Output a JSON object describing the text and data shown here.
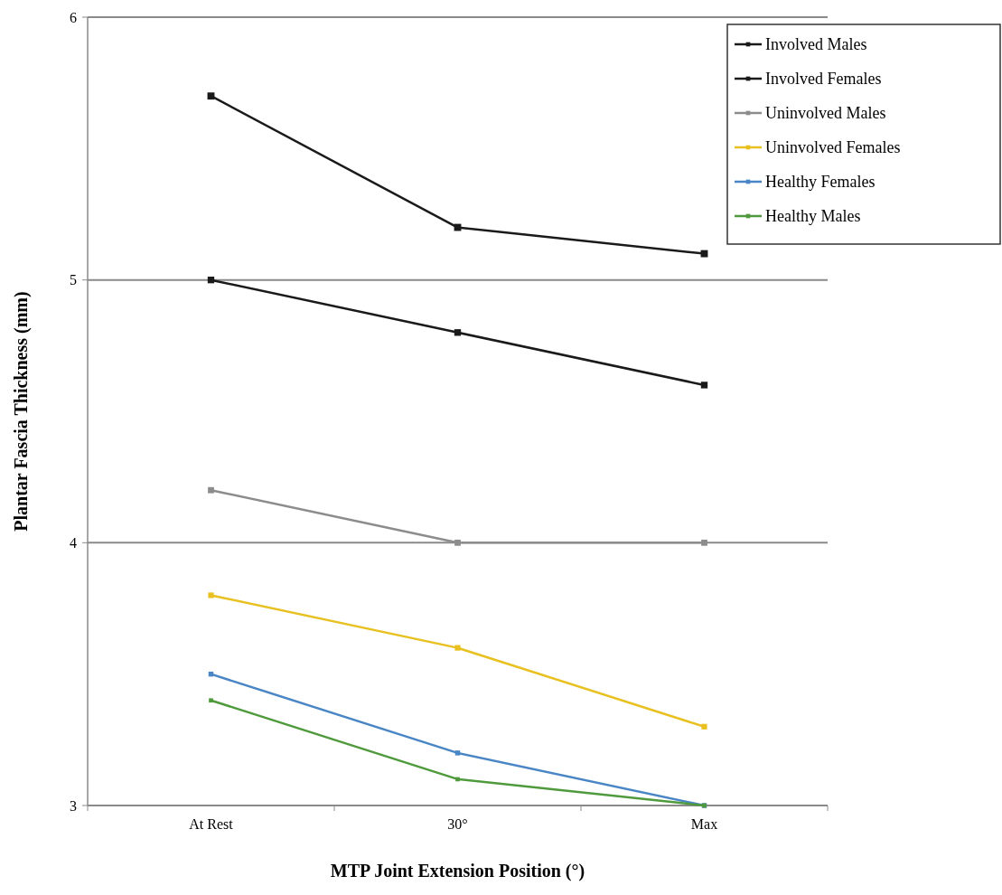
{
  "chart_data": {
    "type": "line",
    "xlabel": "MTP Joint Extension Position (°)",
    "ylabel": "Plantar Fascia Thickness (mm)",
    "categories": [
      "At Rest",
      "30°",
      "Max"
    ],
    "series": [
      {
        "name": "Involved Males",
        "color": "#1a1a1a",
        "values": [
          5.7,
          5.2,
          5.1
        ]
      },
      {
        "name": "Involved Females",
        "color": "#1a1a1a",
        "values": [
          5.0,
          4.8,
          4.6
        ]
      },
      {
        "name": "Uninvolved Males",
        "color": "#8c8c8c",
        "values": [
          4.2,
          4.0,
          4.0
        ]
      },
      {
        "name": "Uninvolved Females",
        "color": "#e8c020",
        "values": [
          3.8,
          3.6,
          3.3
        ]
      },
      {
        "name": "Healthy Females",
        "color": "#4a86c5",
        "values": [
          3.5,
          3.2,
          3.0
        ]
      },
      {
        "name": "Healthy Males",
        "color": "#4f9a3c",
        "values": [
          3.4,
          3.1,
          3.0
        ]
      }
    ],
    "ylim": [
      3,
      6
    ],
    "yticks": [
      3,
      4,
      5,
      6
    ],
    "grid": "y",
    "legend": "top right",
    "marker": "square",
    "line_style": "solid"
  }
}
